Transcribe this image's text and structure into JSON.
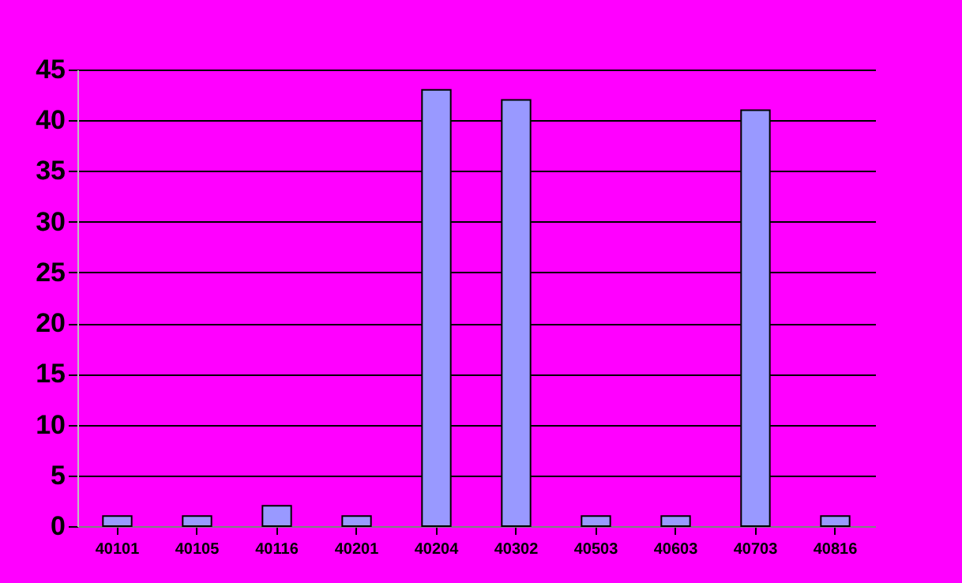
{
  "chart_data": {
    "type": "bar",
    "categories": [
      "40101",
      "40105",
      "40116",
      "40201",
      "40204",
      "40302",
      "40503",
      "40603",
      "40703",
      "40816"
    ],
    "values": [
      1,
      1,
      2,
      1,
      43,
      42,
      1,
      1,
      41,
      1
    ],
    "color": "#9999ff",
    "ylim": [
      0,
      45
    ],
    "yticks": [
      0,
      5,
      10,
      15,
      20,
      25,
      30,
      35,
      40,
      45
    ],
    "grid": "y"
  }
}
